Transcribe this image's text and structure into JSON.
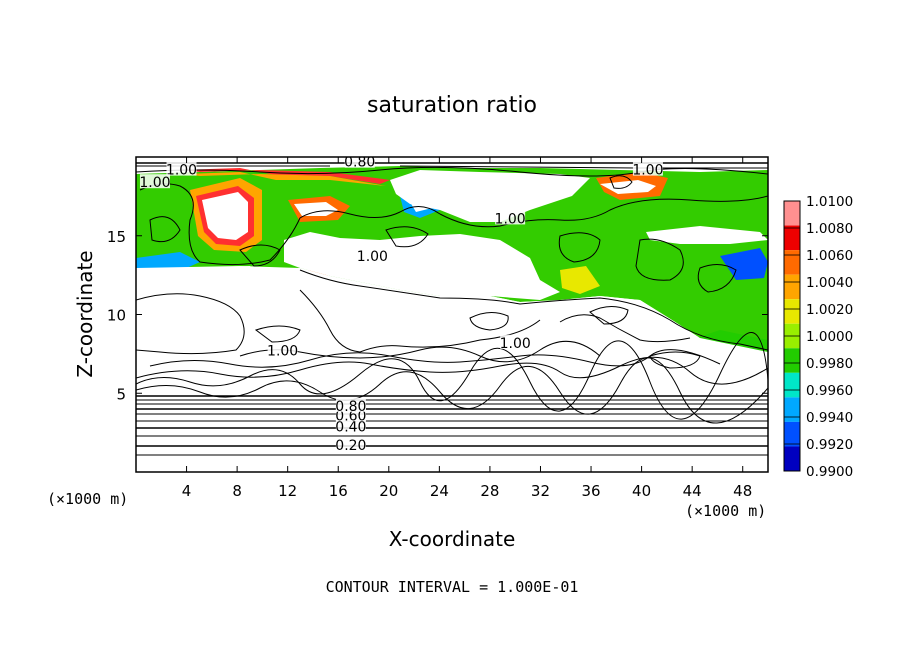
{
  "chart_data": {
    "type": "heatmap",
    "title": "saturation ratio",
    "xlabel": "X-coordinate",
    "ylabel": "Z-coordinate",
    "x_unit": "(×1000 m)",
    "y_unit": "(×1000 m)",
    "xlim": [
      0,
      50
    ],
    "ylim": [
      0,
      20
    ],
    "x_ticks": [
      4,
      8,
      12,
      16,
      20,
      24,
      28,
      32,
      36,
      40,
      44,
      48
    ],
    "y_ticks": [
      5,
      10,
      15
    ],
    "footer": "CONTOUR INTERVAL = 1.000E-01",
    "colorbar": {
      "levels": [
        "1.0100",
        "1.0080",
        "1.0060",
        "1.0040",
        "1.0020",
        "1.0000",
        "0.9980",
        "0.9960",
        "0.9940",
        "0.9920",
        "0.9900"
      ],
      "colors": [
        "#ff9090",
        "#ee0000",
        "#ff6a00",
        "#ffa500",
        "#e8e800",
        "#99ee00",
        "#22cc00",
        "#00e6c8",
        "#00a8ff",
        "#0050ff",
        "#0000c0",
        "#6600aa"
      ]
    },
    "contour_labels": [
      {
        "text": "1.00",
        "x": 3.6,
        "z": 19.2
      },
      {
        "text": "0.80",
        "x": 17.7,
        "z": 19.7
      },
      {
        "text": "1.00",
        "x": 40.5,
        "z": 19.2
      },
      {
        "text": "1.00",
        "x": 1.5,
        "z": 18.4
      },
      {
        "text": "1.00",
        "x": 29.6,
        "z": 16.1
      },
      {
        "text": "1.00",
        "x": 18.7,
        "z": 13.7
      },
      {
        "text": "1.00",
        "x": 11.6,
        "z": 7.7
      },
      {
        "text": "1.00",
        "x": 30.0,
        "z": 8.2
      },
      {
        "text": "0.20",
        "x": 17.0,
        "z": 1.7
      },
      {
        "text": "0.40",
        "x": 17.0,
        "z": 2.9
      },
      {
        "text": "0.60",
        "x": 17.0,
        "z": 3.6
      },
      {
        "text": "0.80",
        "x": 17.0,
        "z": 4.2
      }
    ]
  }
}
